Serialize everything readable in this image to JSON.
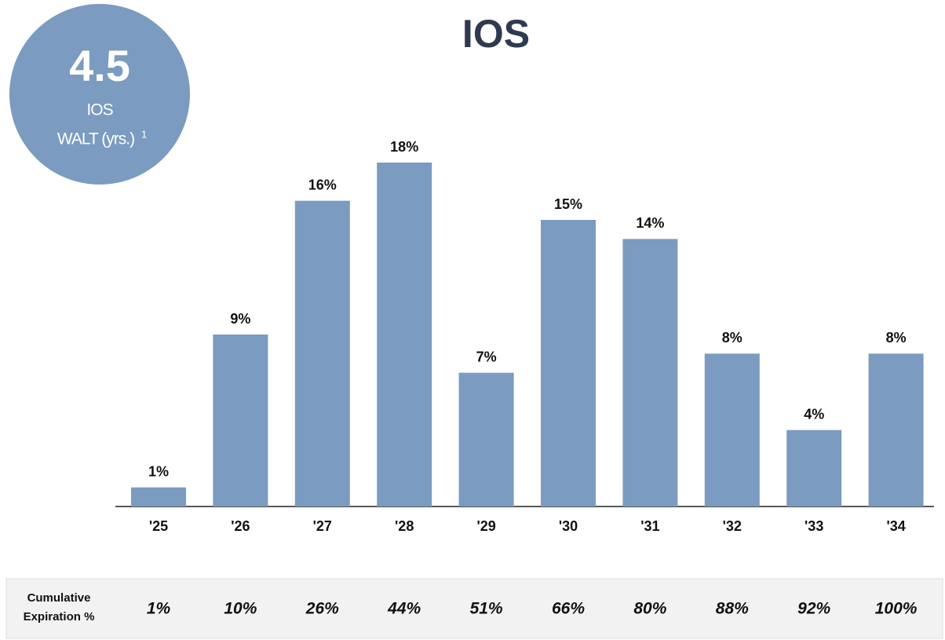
{
  "chart_data": {
    "type": "bar",
    "title": "IOS",
    "categories": [
      "'25",
      "'26",
      "'27",
      "'28",
      "'29",
      "'30",
      "'31",
      "'32",
      "'33",
      "'34"
    ],
    "values": [
      1,
      9,
      16,
      18,
      7,
      15,
      14,
      8,
      4,
      8
    ],
    "value_labels": [
      "1%",
      "9%",
      "16%",
      "18%",
      "7%",
      "15%",
      "14%",
      "8%",
      "4%",
      "8%"
    ],
    "color": "#7b9bc0",
    "badge": {
      "value": "4.5",
      "line1": "IOS",
      "line2": "WALT (yrs.)",
      "footnote": "1"
    },
    "cumulative": {
      "label": [
        "Cumulative",
        "Expiration %"
      ],
      "values": [
        "1%",
        "10%",
        "26%",
        "44%",
        "51%",
        "66%",
        "80%",
        "88%",
        "92%",
        "100%"
      ]
    }
  }
}
